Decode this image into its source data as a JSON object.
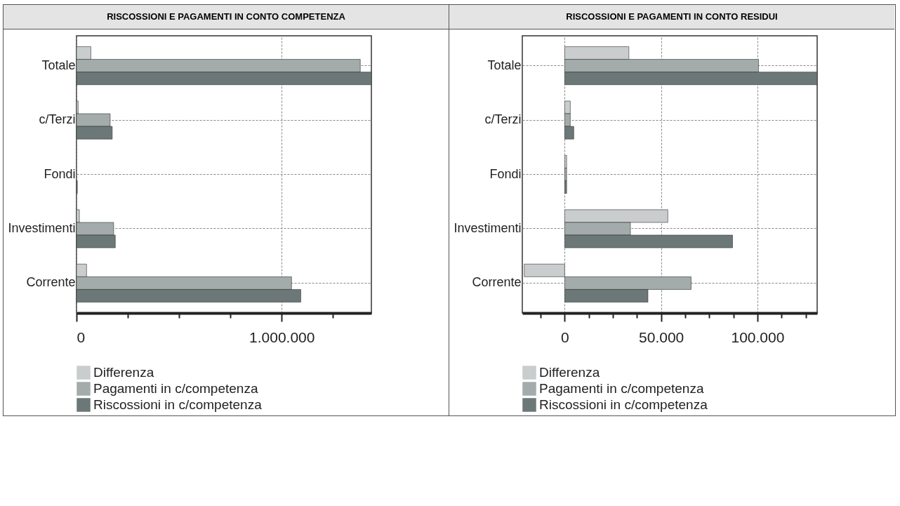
{
  "chart_data": [
    {
      "type": "bar",
      "orientation": "horizontal",
      "title": "RISCOSSIONI E PAGAMENTI IN CONTO COMPETENZA",
      "categories": [
        "Totale",
        "c/Terzi",
        "Fondi",
        "Investimenti",
        "Corrente"
      ],
      "series": [
        {
          "name": "Differenza",
          "color": "#c9cdcd",
          "values": [
            70000,
            8000,
            null,
            14000,
            49000
          ]
        },
        {
          "name": "Pagamenti in c/competenza",
          "color": "#a3abab",
          "values": [
            1383000,
            164000,
            null,
            181000,
            1048000
          ]
        },
        {
          "name": "Riscossioni in c/competenza",
          "color": "#6c7877",
          "values": [
            1437000,
            174000,
            4000,
            189000,
            1093000
          ]
        }
      ],
      "xlim": [
        0,
        1437000
      ],
      "xticks": [
        0,
        {
          "value": 250000,
          "label": null
        },
        {
          "value": 500000,
          "label": null
        },
        {
          "value": 750000,
          "label": null
        },
        {
          "value": 1000000,
          "label": "1.000.000"
        },
        {
          "value": 1250000,
          "label": null
        }
      ],
      "grid": true,
      "legend": "bottom"
    },
    {
      "type": "bar",
      "orientation": "horizontal",
      "title": "RISCOSSIONI E PAGAMENTI IN CONTO RESIDUI",
      "categories": [
        "Totale",
        "c/Terzi",
        "Fondi",
        "Investimenti",
        "Corrente"
      ],
      "series": [
        {
          "name": "Differenza",
          "color": "#c9cdcd",
          "values": [
            33300,
            2900,
            1000,
            53500,
            -21000
          ]
        },
        {
          "name": "Pagamenti in c/competenza",
          "color": "#a3abab",
          "values": [
            100600,
            2900,
            1000,
            34100,
            65600
          ]
        },
        {
          "name": "Riscossioni in c/competenza",
          "color": "#6c7877",
          "values": [
            131000,
            4700,
            1000,
            87100,
            43200
          ]
        }
      ],
      "xlim": [
        -22000,
        131000
      ],
      "xticks": [
        {
          "value": -12500,
          "label": null
        },
        0,
        {
          "value": 12500,
          "label": null
        },
        {
          "value": 25000,
          "label": null
        },
        {
          "value": 37500,
          "label": null
        },
        {
          "value": 50000,
          "label": "50.000"
        },
        {
          "value": 62500,
          "label": null
        },
        {
          "value": 75000,
          "label": null
        },
        {
          "value": 87500,
          "label": null
        },
        {
          "value": 100000,
          "label": "100.000"
        },
        {
          "value": 112500,
          "label": null
        },
        {
          "value": 125000,
          "label": null
        }
      ],
      "grid": true,
      "legend": "bottom"
    }
  ]
}
